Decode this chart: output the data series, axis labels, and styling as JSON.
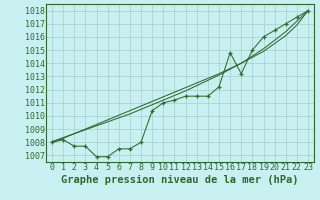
{
  "x": [
    0,
    1,
    2,
    3,
    4,
    5,
    6,
    7,
    8,
    9,
    10,
    11,
    12,
    13,
    14,
    15,
    16,
    17,
    18,
    19,
    20,
    21,
    22,
    23
  ],
  "measured": [
    1008.0,
    1008.2,
    1007.7,
    1007.7,
    1006.9,
    1006.9,
    1007.5,
    1007.5,
    1008.0,
    1010.4,
    1011.0,
    1011.2,
    1011.5,
    1011.5,
    1011.5,
    1012.2,
    1014.8,
    1013.2,
    1015.0,
    1016.0,
    1016.5,
    1017.0,
    1017.5,
    1018.0
  ],
  "trend1": [
    1007.95,
    1008.3,
    1008.65,
    1009.0,
    1009.35,
    1009.7,
    1010.05,
    1010.4,
    1010.75,
    1011.1,
    1011.45,
    1011.8,
    1012.15,
    1012.5,
    1012.85,
    1013.2,
    1013.6,
    1014.0,
    1014.45,
    1014.9,
    1015.5,
    1016.1,
    1016.9,
    1018.0
  ],
  "trend2": [
    1008.05,
    1008.35,
    1008.65,
    1008.95,
    1009.25,
    1009.55,
    1009.85,
    1010.15,
    1010.5,
    1010.85,
    1011.2,
    1011.55,
    1011.9,
    1012.3,
    1012.7,
    1013.1,
    1013.55,
    1014.0,
    1014.55,
    1015.1,
    1015.75,
    1016.4,
    1017.2,
    1018.0
  ],
  "line_color": "#2d6a2d",
  "bg_color": "#c8f0f0",
  "grid_color": "#a8cece",
  "xlabel": "Graphe pression niveau de la mer (hPa)",
  "ylim": [
    1006.5,
    1018.5
  ],
  "xlim": [
    -0.5,
    23.5
  ],
  "yticks": [
    1007,
    1008,
    1009,
    1010,
    1011,
    1012,
    1013,
    1014,
    1015,
    1016,
    1017,
    1018
  ],
  "xticks": [
    0,
    1,
    2,
    3,
    4,
    5,
    6,
    7,
    8,
    9,
    10,
    11,
    12,
    13,
    14,
    15,
    16,
    17,
    18,
    19,
    20,
    21,
    22,
    23
  ],
  "xlabel_fontsize": 7.5,
  "tick_fontsize": 6.0,
  "figsize": [
    3.2,
    2.0
  ],
  "dpi": 100
}
